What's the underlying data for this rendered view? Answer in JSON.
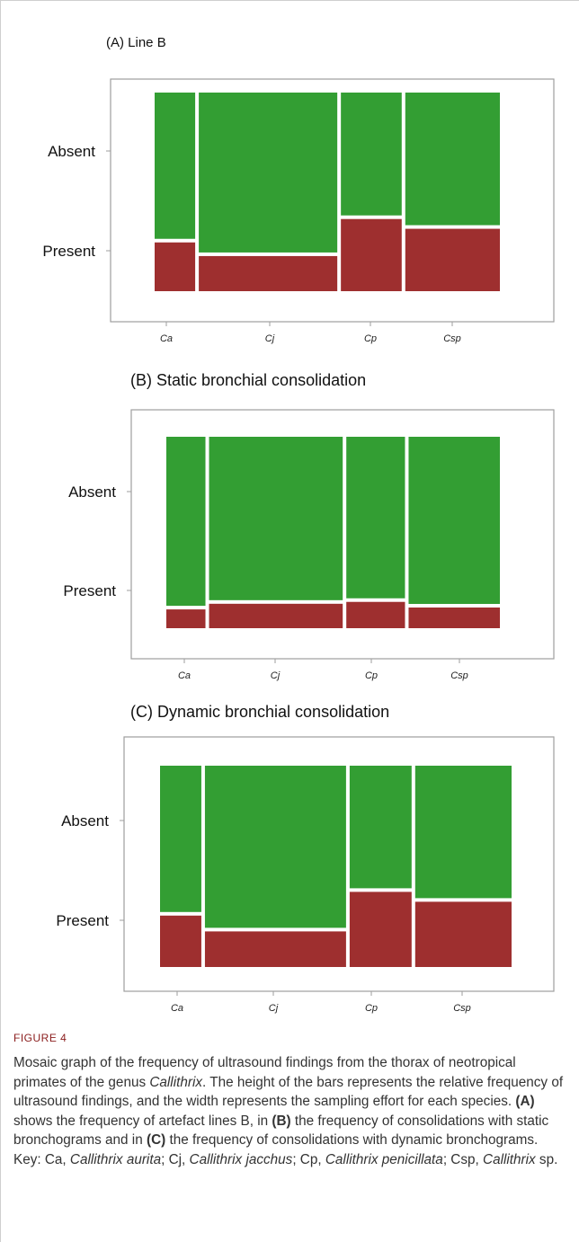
{
  "colors": {
    "absent": "#339e33",
    "present": "#9e2f2f",
    "frame": "#9e9e9e"
  },
  "chart_data": [
    {
      "type": "mosaic",
      "title": "(A) Line B",
      "categories": [
        "Ca",
        "Cj",
        "Cp",
        "Csp"
      ],
      "y_levels": [
        "Absent",
        "Present"
      ],
      "widths": [
        0.12,
        0.41,
        0.18,
        0.28
      ],
      "present_fraction": [
        0.25,
        0.18,
        0.37,
        0.32
      ],
      "absent_fraction": [
        0.75,
        0.82,
        0.63,
        0.68
      ]
    },
    {
      "type": "mosaic",
      "title": "(B)  Static bronchial consolidation",
      "categories": [
        "Ca",
        "Cj",
        "Cp",
        "Csp"
      ],
      "y_levels": [
        "Absent",
        "Present"
      ],
      "widths": [
        0.12,
        0.41,
        0.18,
        0.28
      ],
      "present_fraction": [
        0.1,
        0.13,
        0.14,
        0.11
      ],
      "absent_fraction": [
        0.9,
        0.87,
        0.86,
        0.89
      ]
    },
    {
      "type": "mosaic",
      "title": "(C)  Dynamic bronchial consolidation",
      "categories": [
        "Ca",
        "Cj",
        "Cp",
        "Csp"
      ],
      "y_levels": [
        "Absent",
        "Present"
      ],
      "widths": [
        0.12,
        0.41,
        0.18,
        0.28
      ],
      "present_fraction": [
        0.26,
        0.18,
        0.38,
        0.33
      ],
      "absent_fraction": [
        0.74,
        0.82,
        0.62,
        0.67
      ]
    }
  ],
  "caption": {
    "label": "FIGURE 4",
    "segments": [
      {
        "t": "Mosaic graph of the frequency of ultrasound findings from the thorax of neotropical primates of the genus ",
        "s": "n"
      },
      {
        "t": "Callithrix",
        "s": "i"
      },
      {
        "t": ". The height of the bars represents the relative frequency of ultrasound findings, and the width represents the sampling effort for each species. ",
        "s": "n"
      },
      {
        "t": "(A)",
        "s": "b"
      },
      {
        "t": " shows the frequency of artefact lines B, in ",
        "s": "n"
      },
      {
        "t": "(B)",
        "s": "b"
      },
      {
        "t": " the frequency of consolidations with static bronchograms and in ",
        "s": "n"
      },
      {
        "t": "(C)",
        "s": "b"
      },
      {
        "t": " the frequency of consolidations with dynamic bronchograms. Key: Ca, ",
        "s": "n"
      },
      {
        "t": "Callithrix aurita",
        "s": "i"
      },
      {
        "t": "; Cj, ",
        "s": "n"
      },
      {
        "t": "Callithrix jacchus",
        "s": "i"
      },
      {
        "t": "; Cp, ",
        "s": "n"
      },
      {
        "t": "Callithrix penicillata",
        "s": "i"
      },
      {
        "t": "; Csp, ",
        "s": "n"
      },
      {
        "t": "Callithrix",
        "s": "i"
      },
      {
        "t": " sp.",
        "s": "n"
      }
    ]
  }
}
